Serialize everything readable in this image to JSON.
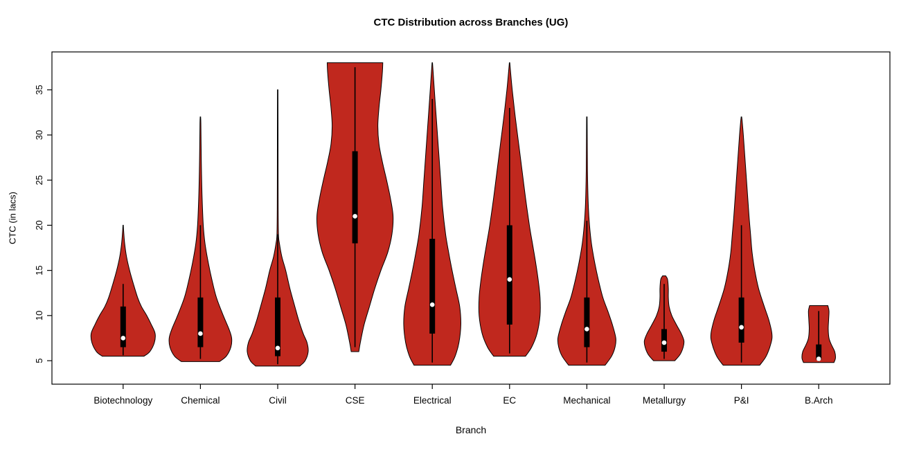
{
  "chart_data": {
    "type": "violin",
    "title": "CTC Distribution across Branches (UG)",
    "xlabel": "Branch",
    "ylabel": "CTC (in lacs)",
    "ylim": [
      2.4,
      39.2
    ],
    "yticks": [
      5,
      10,
      15,
      20,
      25,
      30,
      35
    ],
    "grid": false,
    "legend": "none",
    "fill_color": "#C0281E",
    "outline_color": "#000000",
    "box_color": "#000000",
    "median_dot_color": "#ffffff",
    "categories": [
      "Biotechnology",
      "Chemical",
      "Civil",
      "CSE",
      "Electrical",
      "EC",
      "Mechanical",
      "Metallurgy",
      "P&I",
      "B.Arch"
    ],
    "violins": [
      {
        "branch": "Biotechnology",
        "range": [
          5.5,
          20
        ],
        "q1": 6.5,
        "median": 7.5,
        "q3": 11,
        "whiskers": [
          5.6,
          13.5
        ],
        "profile": [
          [
            5.5,
            0.55
          ],
          [
            6.0,
            0.7
          ],
          [
            7.0,
            0.82
          ],
          [
            8.0,
            0.84
          ],
          [
            9.0,
            0.74
          ],
          [
            10.0,
            0.62
          ],
          [
            11.0,
            0.48
          ],
          [
            12.0,
            0.38
          ],
          [
            13.5,
            0.27
          ],
          [
            15.0,
            0.17
          ],
          [
            16.5,
            0.09
          ],
          [
            18.0,
            0.04
          ],
          [
            19.3,
            0.015
          ],
          [
            20.0,
            0.005
          ]
        ]
      },
      {
        "branch": "Chemical",
        "range": [
          4.9,
          32
        ],
        "q1": 6.5,
        "median": 8,
        "q3": 12,
        "whiskers": [
          5.2,
          20
        ],
        "profile": [
          [
            4.9,
            0.5
          ],
          [
            5.5,
            0.68
          ],
          [
            6.5,
            0.8
          ],
          [
            7.5,
            0.82
          ],
          [
            8.5,
            0.75
          ],
          [
            10,
            0.6
          ],
          [
            12,
            0.42
          ],
          [
            14,
            0.3
          ],
          [
            16,
            0.2
          ],
          [
            18,
            0.12
          ],
          [
            20,
            0.075
          ],
          [
            23,
            0.045
          ],
          [
            26,
            0.028
          ],
          [
            29,
            0.018
          ],
          [
            31.3,
            0.012
          ],
          [
            32,
            0.006
          ]
        ]
      },
      {
        "branch": "Civil",
        "range": [
          4.4,
          35
        ],
        "q1": 5.5,
        "median": 6.4,
        "q3": 12,
        "whiskers": [
          4.6,
          19
        ],
        "profile": [
          [
            4.4,
            0.58
          ],
          [
            5.0,
            0.72
          ],
          [
            6.0,
            0.8
          ],
          [
            7.0,
            0.77
          ],
          [
            8.0,
            0.67
          ],
          [
            9.5,
            0.55
          ],
          [
            11,
            0.45
          ],
          [
            13,
            0.32
          ],
          [
            15,
            0.21
          ],
          [
            16.5,
            0.11
          ],
          [
            18,
            0.045
          ],
          [
            19,
            0.02
          ],
          [
            22,
            0.012
          ],
          [
            26,
            0.01
          ],
          [
            30,
            0.009
          ],
          [
            35,
            0.007
          ]
        ]
      },
      {
        "branch": "CSE",
        "range": [
          6,
          38
        ],
        "q1": 18,
        "median": 21,
        "q3": 28.2,
        "whiskers": [
          6.5,
          37.5
        ],
        "profile": [
          [
            6.0,
            0.1
          ],
          [
            7,
            0.14
          ],
          [
            9,
            0.24
          ],
          [
            11,
            0.38
          ],
          [
            13,
            0.52
          ],
          [
            15,
            0.68
          ],
          [
            17,
            0.86
          ],
          [
            19,
            0.97
          ],
          [
            21,
            1.0
          ],
          [
            23,
            0.93
          ],
          [
            25,
            0.83
          ],
          [
            27,
            0.72
          ],
          [
            29,
            0.63
          ],
          [
            31,
            0.6
          ],
          [
            33,
            0.63
          ],
          [
            35,
            0.68
          ],
          [
            37,
            0.72
          ],
          [
            38,
            0.73
          ]
        ]
      },
      {
        "branch": "Electrical",
        "range": [
          4.5,
          38
        ],
        "q1": 8,
        "median": 11.2,
        "q3": 18.5,
        "whiskers": [
          4.8,
          34
        ],
        "profile": [
          [
            4.5,
            0.48
          ],
          [
            5.5,
            0.6
          ],
          [
            7,
            0.7
          ],
          [
            9,
            0.75
          ],
          [
            11,
            0.72
          ],
          [
            13,
            0.62
          ],
          [
            15,
            0.52
          ],
          [
            17,
            0.43
          ],
          [
            19,
            0.35
          ],
          [
            22,
            0.27
          ],
          [
            25,
            0.22
          ],
          [
            28,
            0.17
          ],
          [
            31,
            0.12
          ],
          [
            34,
            0.07
          ],
          [
            36.5,
            0.03
          ],
          [
            38,
            0.006
          ]
        ]
      },
      {
        "branch": "EC",
        "range": [
          5.5,
          38
        ],
        "q1": 9,
        "median": 14,
        "q3": 20,
        "whiskers": [
          5.8,
          33
        ],
        "profile": [
          [
            5.5,
            0.42
          ],
          [
            6.5,
            0.58
          ],
          [
            8,
            0.72
          ],
          [
            10,
            0.8
          ],
          [
            12,
            0.8
          ],
          [
            14,
            0.75
          ],
          [
            16,
            0.68
          ],
          [
            18,
            0.6
          ],
          [
            20,
            0.52
          ],
          [
            23,
            0.42
          ],
          [
            26,
            0.33
          ],
          [
            29,
            0.24
          ],
          [
            32,
            0.15
          ],
          [
            35,
            0.07
          ],
          [
            37.3,
            0.02
          ],
          [
            38,
            0.006
          ]
        ]
      },
      {
        "branch": "Mechanical",
        "range": [
          4.5,
          32
        ],
        "q1": 6.5,
        "median": 8.5,
        "q3": 12,
        "whiskers": [
          4.8,
          20.5
        ],
        "profile": [
          [
            4.5,
            0.48
          ],
          [
            5.5,
            0.65
          ],
          [
            6.5,
            0.74
          ],
          [
            7.5,
            0.76
          ],
          [
            9,
            0.67
          ],
          [
            10.5,
            0.55
          ],
          [
            12,
            0.42
          ],
          [
            14,
            0.3
          ],
          [
            16,
            0.2
          ],
          [
            18,
            0.12
          ],
          [
            20,
            0.07
          ],
          [
            22,
            0.04
          ],
          [
            25,
            0.02
          ],
          [
            28,
            0.013
          ],
          [
            32,
            0.007
          ]
        ]
      },
      {
        "branch": "Metallurgy",
        "range": [
          5,
          14.4
        ],
        "q1": 6,
        "median": 7,
        "q3": 8.5,
        "whiskers": [
          5.2,
          13.5
        ],
        "profile": [
          [
            5.0,
            0.28
          ],
          [
            5.7,
            0.42
          ],
          [
            6.5,
            0.5
          ],
          [
            7.2,
            0.52
          ],
          [
            8,
            0.45
          ],
          [
            9,
            0.32
          ],
          [
            10,
            0.2
          ],
          [
            11,
            0.13
          ],
          [
            12,
            0.11
          ],
          [
            13,
            0.11
          ],
          [
            14,
            0.09
          ],
          [
            14.4,
            0.04
          ]
        ]
      },
      {
        "branch": "P&I",
        "range": [
          4.5,
          32
        ],
        "q1": 7,
        "median": 8.7,
        "q3": 12,
        "whiskers": [
          4.8,
          20
        ],
        "profile": [
          [
            4.5,
            0.48
          ],
          [
            5.5,
            0.65
          ],
          [
            7,
            0.78
          ],
          [
            8,
            0.8
          ],
          [
            9.5,
            0.72
          ],
          [
            11,
            0.6
          ],
          [
            13,
            0.45
          ],
          [
            15,
            0.35
          ],
          [
            17,
            0.28
          ],
          [
            19,
            0.24
          ],
          [
            21,
            0.2
          ],
          [
            24,
            0.15
          ],
          [
            27,
            0.1
          ],
          [
            30,
            0.05
          ],
          [
            31.5,
            0.02
          ],
          [
            32,
            0.007
          ]
        ]
      },
      {
        "branch": "B.Arch",
        "range": [
          4.8,
          11.1
        ],
        "q1": 5.1,
        "median": 5.2,
        "q3": 6.8,
        "whiskers": [
          4.9,
          10.5
        ],
        "profile": [
          [
            4.8,
            0.4
          ],
          [
            5.3,
            0.44
          ],
          [
            6.0,
            0.42
          ],
          [
            6.8,
            0.33
          ],
          [
            7.5,
            0.27
          ],
          [
            8.5,
            0.25
          ],
          [
            9.5,
            0.26
          ],
          [
            10.5,
            0.27
          ],
          [
            11.1,
            0.24
          ]
        ]
      }
    ]
  }
}
